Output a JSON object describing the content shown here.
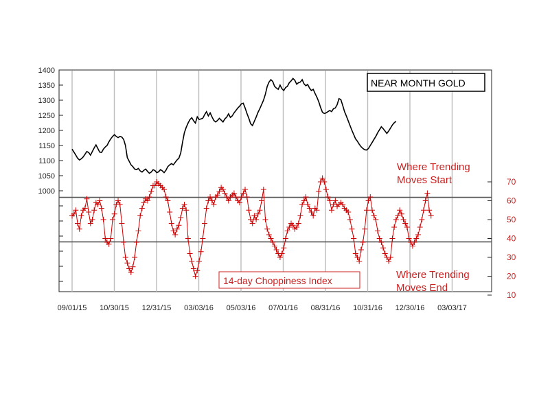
{
  "chart_data": {
    "type": "line",
    "title": "NEAR MONTH GOLD",
    "x_tick_labels": [
      "09/01/15",
      "10/30/15",
      "12/31/15",
      "03/03/16",
      "05/03/16",
      "07/01/16",
      "08/31/16",
      "10/31/16",
      "12/30/16",
      "03/03/17"
    ],
    "left_axis": {
      "ticks": [
        1400,
        1350,
        1300,
        1250,
        1200,
        1150,
        1100,
        1050,
        1000
      ],
      "ylim": [
        1000,
        1400
      ]
    },
    "right_axis": {
      "ticks": [
        70,
        60,
        50,
        40,
        30,
        20,
        10
      ],
      "ylim": [
        10,
        70
      ]
    },
    "reference_lines": [
      61.8,
      38.2
    ],
    "colors": {
      "price": "#000000",
      "choppiness": "#cc0000",
      "reference": "#555555",
      "grid": "#bbbbbb"
    },
    "series": [
      {
        "name": "NEAR MONTH GOLD",
        "axis": "left",
        "x_start_index": 0,
        "values": [
          1138,
          1128,
          1118,
          1108,
          1102,
          1106,
          1112,
          1121,
          1130,
          1127,
          1118,
          1130,
          1142,
          1152,
          1140,
          1128,
          1127,
          1138,
          1145,
          1150,
          1162,
          1172,
          1180,
          1186,
          1180,
          1176,
          1180,
          1178,
          1170,
          1150,
          1110,
          1098,
          1086,
          1080,
          1072,
          1070,
          1074,
          1066,
          1062,
          1068,
          1072,
          1064,
          1058,
          1062,
          1070,
          1067,
          1060,
          1063,
          1070,
          1066,
          1060,
          1068,
          1080,
          1086,
          1090,
          1086,
          1094,
          1102,
          1108,
          1125,
          1160,
          1192,
          1210,
          1224,
          1236,
          1242,
          1232,
          1224,
          1245,
          1236,
          1238,
          1240,
          1252,
          1262,
          1248,
          1258,
          1245,
          1233,
          1228,
          1233,
          1240,
          1234,
          1228,
          1238,
          1244,
          1255,
          1243,
          1248,
          1258,
          1266,
          1274,
          1280,
          1288,
          1290,
          1274,
          1256,
          1240,
          1222,
          1216,
          1230,
          1244,
          1260,
          1272,
          1286,
          1300,
          1320,
          1346,
          1360,
          1368,
          1362,
          1346,
          1340,
          1336,
          1350,
          1338,
          1332,
          1342,
          1346,
          1358,
          1364,
          1372,
          1366,
          1353,
          1358,
          1360,
          1368,
          1354,
          1348,
          1352,
          1340,
          1332,
          1336,
          1322,
          1310,
          1295,
          1276,
          1260,
          1256,
          1258,
          1262,
          1266,
          1262,
          1272,
          1274,
          1285,
          1305,
          1302,
          1283,
          1262,
          1248,
          1232,
          1216,
          1200,
          1186,
          1172,
          1164,
          1154,
          1146,
          1140,
          1136,
          1135,
          1140,
          1150,
          1160,
          1170,
          1180,
          1192,
          1202,
          1212,
          1206,
          1198,
          1190,
          1198,
          1208,
          1218,
          1225,
          1230
        ]
      },
      {
        "name": "14-day Choppiness Index",
        "axis": "right",
        "x_start_index": 0,
        "values": [
          52,
          53,
          55,
          48,
          45,
          52,
          55,
          56,
          61,
          54,
          48,
          50,
          55,
          59,
          58,
          60,
          56,
          50,
          40,
          38,
          37,
          40,
          50,
          53,
          58,
          60,
          58,
          48,
          38,
          30,
          27,
          24,
          22,
          25,
          30,
          38,
          44,
          52,
          56,
          59,
          61,
          60,
          62,
          65,
          68,
          68,
          70,
          69,
          68,
          67,
          66,
          62,
          60,
          54,
          48,
          44,
          42,
          45,
          47,
          51,
          56,
          58,
          55,
          40,
          32,
          28,
          24,
          20,
          23,
          28,
          33,
          40,
          48,
          56,
          60,
          62,
          60,
          58,
          62,
          63,
          65,
          67,
          66,
          64,
          62,
          60,
          62,
          63,
          64,
          62,
          60,
          59,
          62,
          64,
          66,
          62,
          55,
          50,
          48,
          52,
          50,
          53,
          55,
          60,
          66,
          50,
          45,
          42,
          40,
          38,
          36,
          34,
          32,
          30,
          32,
          35,
          40,
          44,
          46,
          48,
          47,
          45,
          46,
          48,
          52,
          58,
          60,
          62,
          58,
          56,
          54,
          52,
          56,
          55,
          65,
          70,
          72,
          70,
          66,
          62,
          60,
          55,
          58,
          60,
          57,
          58,
          59,
          58,
          56,
          55,
          54,
          50,
          45,
          40,
          32,
          30,
          28,
          34,
          38,
          45,
          55,
          60,
          62,
          55,
          52,
          50,
          44,
          40,
          38,
          35,
          32,
          30,
          28,
          30,
          40,
          46,
          50,
          52,
          55,
          53,
          50,
          48,
          46,
          40,
          38,
          36,
          38,
          40,
          42,
          46,
          50,
          55,
          60,
          64,
          55,
          52
        ]
      }
    ]
  },
  "labels": {
    "price_title": "NEAR MONTH GOLD",
    "ci_title": "14-day Choppiness Index",
    "annot_start_line1": "Where Trending",
    "annot_start_line2": "Moves Start",
    "annot_end_line1": "Where Trending",
    "annot_end_line2": "Moves End"
  }
}
